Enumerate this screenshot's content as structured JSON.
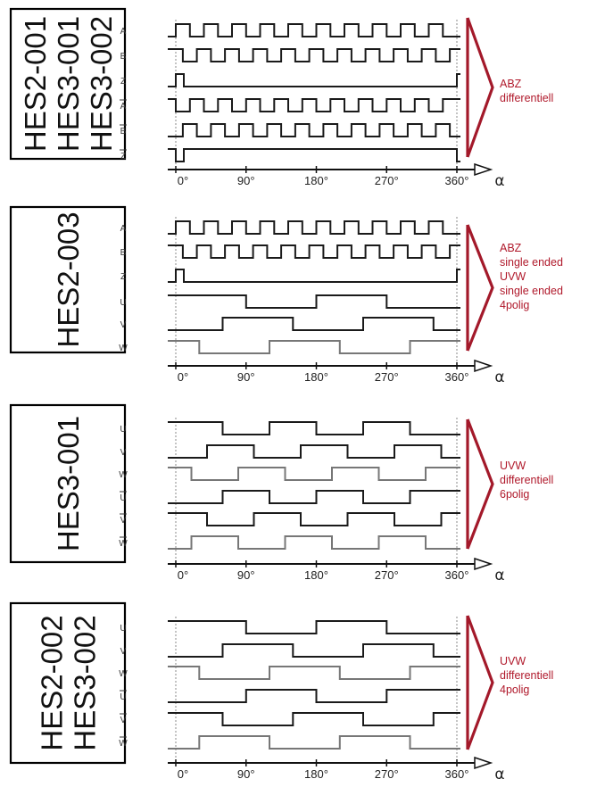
{
  "colors": {
    "accent": "#a3192a",
    "trace": "#1a1a1a",
    "trace_light": "#777777",
    "frame": "#000000"
  },
  "axis": {
    "ticks": [
      "0°",
      "90°",
      "180°",
      "270°",
      "360°"
    ],
    "symbol": "α"
  },
  "panels": [
    {
      "models": [
        "HES2-001",
        "HES3-001",
        "HES3-002"
      ],
      "signals": [
        {
          "label": "A",
          "bar": false
        },
        {
          "label": "B",
          "bar": false
        },
        {
          "label": "Z",
          "bar": false
        },
        {
          "label": "A",
          "bar": true
        },
        {
          "label": "B",
          "bar": true
        },
        {
          "label": "Z",
          "bar": true
        }
      ],
      "description": [
        "ABZ",
        "differentiell"
      ]
    },
    {
      "models": [
        "HES2-003"
      ],
      "signals": [
        {
          "label": "A",
          "bar": false
        },
        {
          "label": "B",
          "bar": false
        },
        {
          "label": "Z",
          "bar": false
        },
        {
          "label": "U",
          "bar": false
        },
        {
          "label": "V",
          "bar": false
        },
        {
          "label": "W",
          "bar": false
        }
      ],
      "description": [
        "ABZ",
        "single ended",
        "UVW",
        "single ended",
        "4polig"
      ]
    },
    {
      "models": [
        "HES3-001"
      ],
      "signals": [
        {
          "label": "U",
          "bar": false
        },
        {
          "label": "V",
          "bar": false
        },
        {
          "label": "W",
          "bar": false
        },
        {
          "label": "U",
          "bar": true
        },
        {
          "label": "V",
          "bar": true
        },
        {
          "label": "W",
          "bar": true
        }
      ],
      "description": [
        "UVW",
        "differentiell",
        "6polig"
      ]
    },
    {
      "models": [
        "HES2-002",
        "HES3-002"
      ],
      "signals": [
        {
          "label": "U",
          "bar": false
        },
        {
          "label": "V",
          "bar": false
        },
        {
          "label": "W",
          "bar": false
        },
        {
          "label": "U",
          "bar": true
        },
        {
          "label": "V",
          "bar": true
        },
        {
          "label": "W",
          "bar": true
        }
      ],
      "description": [
        "UVW",
        "differentiell",
        "4polig"
      ]
    }
  ]
}
